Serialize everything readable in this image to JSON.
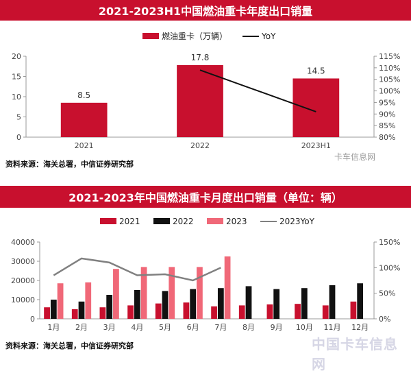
{
  "chart_data": [
    {
      "type": "bar",
      "title": "2021-2023H1中国燃油重卡年度出口销量",
      "categories": [
        "2021",
        "2022",
        "2023H1"
      ],
      "series": [
        {
          "name": "燃油重卡（万辆）",
          "type": "bar",
          "axis": "left",
          "color": "#c8102e",
          "values": [
            8.5,
            17.8,
            14.5
          ],
          "labels": [
            "8.5",
            "17.8",
            "14.5"
          ]
        },
        {
          "name": "YoY",
          "type": "line",
          "axis": "right",
          "color": "#111111",
          "values": [
            null,
            109,
            91
          ]
        }
      ],
      "ylim": [
        0,
        20
      ],
      "yticks": [
        "0",
        "5",
        "10",
        "15",
        "20"
      ],
      "y2lim": [
        80,
        115
      ],
      "y2ticks": [
        "80%",
        "85%",
        "90%",
        "95%",
        "100%",
        "105%",
        "110%",
        "115%"
      ],
      "legend": "top",
      "grid": false
    },
    {
      "type": "bar",
      "title": "2021-2023年中国燃油重卡月度出口销量（单位：辆）",
      "categories": [
        "1月",
        "2月",
        "3月",
        "4月",
        "5月",
        "6月",
        "7月",
        "8月",
        "9月",
        "10月",
        "11月",
        "12月"
      ],
      "series": [
        {
          "name": "2021",
          "type": "bar",
          "axis": "left",
          "color": "#c8102e",
          "values": [
            6000,
            5000,
            6000,
            7000,
            8000,
            8500,
            6500,
            7000,
            7500,
            7800,
            7000,
            9000
          ]
        },
        {
          "name": "2022",
          "type": "bar",
          "axis": "left",
          "color": "#111111",
          "values": [
            10000,
            9000,
            12500,
            15000,
            14500,
            15500,
            16000,
            17000,
            15500,
            16000,
            17500,
            18500
          ]
        },
        {
          "name": "2023",
          "type": "bar",
          "axis": "left",
          "color": "#f06878",
          "values": [
            18500,
            19000,
            26000,
            27000,
            27000,
            27000,
            32500,
            null,
            null,
            null,
            null,
            null
          ]
        },
        {
          "name": "2023YoY",
          "type": "line",
          "axis": "right",
          "color": "#808080",
          "values": [
            85,
            118,
            110,
            85,
            87,
            75,
            100,
            null,
            null,
            null,
            null,
            null
          ]
        }
      ],
      "ylim": [
        0,
        40000
      ],
      "yticks": [
        "0",
        "10000",
        "20000",
        "30000",
        "40000"
      ],
      "y2lim": [
        0,
        150
      ],
      "y2ticks": [
        "0%",
        "50%",
        "100%",
        "150%"
      ],
      "legend": "top",
      "grid": false
    }
  ],
  "source1": "资料来源：海关总署，中信证券研究部",
  "source2": "资料来源：海关总署，中信证券研究部",
  "watermark1": "卡车信息网",
  "watermark2": "中国卡车信息网"
}
